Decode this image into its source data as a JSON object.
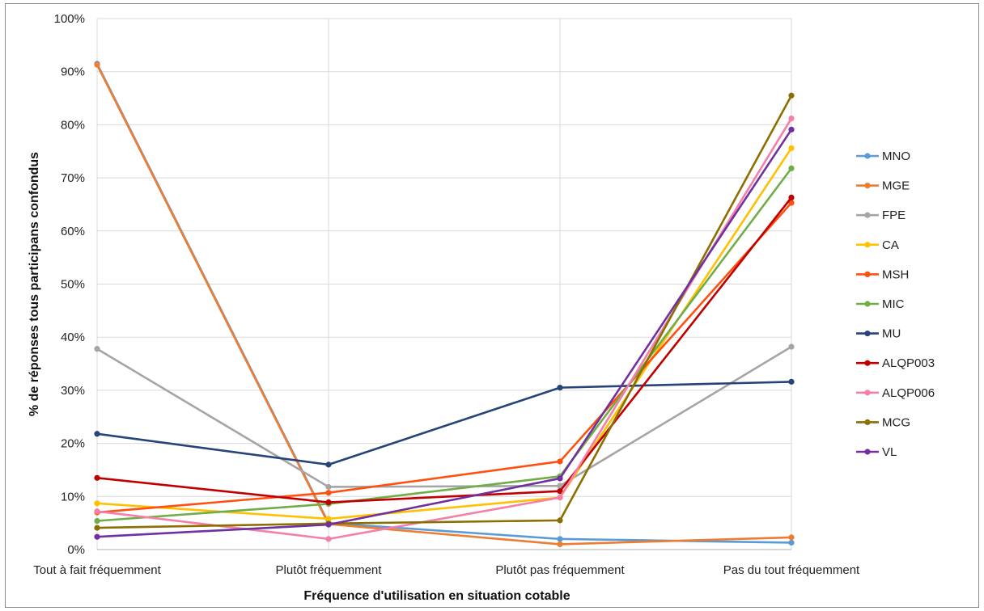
{
  "chart_data": {
    "type": "line",
    "title": "",
    "xlabel": "Fréquence d'utilisation en situation cotable",
    "ylabel": "% de réponses tous participans confondus",
    "ylim": [
      0,
      100
    ],
    "yticks": [
      0,
      10,
      20,
      30,
      40,
      50,
      60,
      70,
      80,
      90,
      100
    ],
    "ytick_suffix": "%",
    "grid": true,
    "legend_position": "right",
    "categories": [
      "Tout à fait fréquemment",
      "Plutôt fréquemment",
      "Plutôt pas fréquemment",
      "Pas du tout fréquemment"
    ],
    "series": [
      {
        "name": "MNO",
        "color": "#5b9bd5",
        "values": [
          91.5,
          5,
          2,
          1.3
        ]
      },
      {
        "name": "MGE",
        "color": "#ed7d31",
        "values": [
          91.3,
          4.8,
          1,
          2.3
        ]
      },
      {
        "name": "FPE",
        "color": "#a5a5a5",
        "values": [
          37.8,
          11.8,
          12,
          38.2
        ]
      },
      {
        "name": "CA",
        "color": "#ffc000",
        "values": [
          8.7,
          5.8,
          9.8,
          75.6
        ]
      },
      {
        "name": "MSH",
        "color": "#ff5010",
        "values": [
          7,
          10.7,
          16.6,
          65.3
        ]
      },
      {
        "name": "MIC",
        "color": "#70ad47",
        "values": [
          5.4,
          8.6,
          13.8,
          71.8
        ]
      },
      {
        "name": "MU",
        "color": "#264478",
        "values": [
          21.8,
          16,
          30.5,
          31.6
        ]
      },
      {
        "name": "ALQP003",
        "color": "#c00000",
        "values": [
          13.5,
          8.9,
          11,
          66.3
        ]
      },
      {
        "name": "ALQP006",
        "color": "#f47fa8",
        "values": [
          7.2,
          2,
          9.8,
          81.2
        ]
      },
      {
        "name": "MCG",
        "color": "#8b6f00",
        "values": [
          4.1,
          4.9,
          5.5,
          85.5
        ]
      },
      {
        "name": "VL",
        "color": "#7030a0",
        "values": [
          2.4,
          4.7,
          13.4,
          79.1
        ]
      }
    ]
  }
}
